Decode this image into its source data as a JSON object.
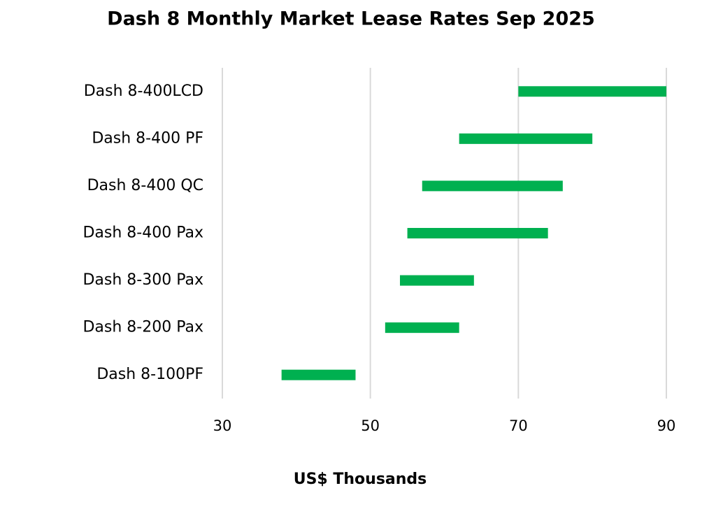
{
  "chart_data": {
    "type": "range-bar",
    "title": "Dash 8 Monthly Market Lease Rates Sep 2025",
    "x_label": "US$ Thousands",
    "categories": [
      "Dash 8-400LCD",
      "Dash 8-400 PF",
      "Dash 8-400 QC",
      "Dash 8-400 Pax",
      "Dash 8-300 Pax",
      "Dash 8-200 Pax",
      "Dash 8-100PF"
    ],
    "low": [
      70,
      62,
      57,
      55,
      54,
      52,
      38
    ],
    "high": [
      90,
      80,
      76,
      74,
      64,
      62,
      48
    ],
    "color": "#00b050",
    "xlim": [
      30,
      90
    ],
    "xticks": [
      30,
      50,
      70,
      90
    ],
    "grid": true
  }
}
